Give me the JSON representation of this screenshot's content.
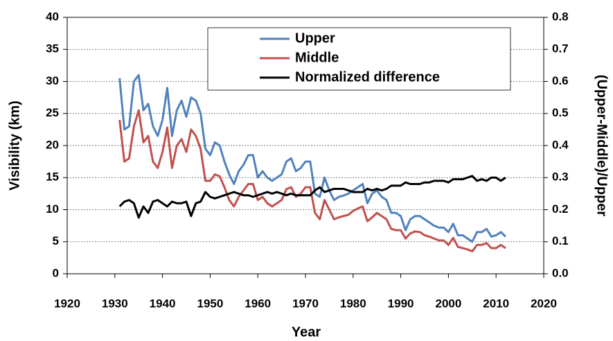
{
  "chart_data": {
    "type": "line",
    "x_label": "Year",
    "y_label": "Visibility (km)",
    "y2_label": "(Upper-Middle)/Upper",
    "x": [
      1931,
      1932,
      1933,
      1934,
      1935,
      1936,
      1937,
      1938,
      1939,
      1940,
      1941,
      1942,
      1943,
      1944,
      1945,
      1946,
      1947,
      1948,
      1949,
      1950,
      1951,
      1952,
      1953,
      1954,
      1955,
      1956,
      1957,
      1958,
      1959,
      1960,
      1961,
      1962,
      1963,
      1964,
      1965,
      1966,
      1967,
      1968,
      1969,
      1970,
      1971,
      1972,
      1973,
      1974,
      1975,
      1976,
      1977,
      1978,
      1979,
      1980,
      1981,
      1982,
      1983,
      1984,
      1985,
      1986,
      1987,
      1988,
      1989,
      1990,
      1991,
      1992,
      1993,
      1994,
      1995,
      1996,
      1997,
      1998,
      1999,
      2000,
      2001,
      2002,
      2003,
      2004,
      2005,
      2006,
      2007,
      2008,
      2009,
      2010,
      2011,
      2012
    ],
    "series": [
      {
        "name": "Upper",
        "color": "#4f81bd",
        "values": [
          30.5,
          22.5,
          23,
          30,
          31,
          25.5,
          26.5,
          23,
          21.5,
          24,
          29,
          21.5,
          25.5,
          27,
          24.5,
          27.5,
          27,
          25,
          19.5,
          18.5,
          20.5,
          20,
          17.5,
          15.5,
          14,
          16,
          17,
          18.5,
          18.5,
          15,
          16,
          15,
          14.5,
          15,
          15.5,
          17.5,
          18,
          16,
          16.5,
          17.5,
          17.5,
          12.5,
          12,
          15,
          13,
          11.5,
          12,
          12.2,
          12.5,
          13,
          13.5,
          14,
          11,
          12.5,
          13,
          12,
          11.5,
          9.5,
          9.5,
          9,
          6.8,
          8.5,
          9,
          9,
          8.5,
          8,
          7.5,
          7.2,
          7.2,
          6.5,
          7.8,
          6,
          6,
          5.5,
          5,
          6.5,
          6.5,
          7,
          5.8,
          6,
          6.5,
          5.8
        ]
      },
      {
        "name": "Middle",
        "color": "#c0504d",
        "values": [
          24,
          17.5,
          18,
          23,
          25.5,
          20.5,
          21.5,
          17.5,
          16.5,
          19,
          22.8,
          16.5,
          20,
          21,
          19,
          22.5,
          21.5,
          19.5,
          14.5,
          14.5,
          15.5,
          15.2,
          13.5,
          11.5,
          10.5,
          12,
          13,
          14,
          14,
          11.5,
          12,
          11,
          10.5,
          11,
          11.5,
          13.2,
          13.5,
          12,
          12.5,
          13.5,
          13.5,
          9.5,
          8.5,
          11.5,
          10,
          8.5,
          8.8,
          9,
          9.2,
          9.8,
          10.2,
          10.5,
          8.2,
          8.8,
          9.5,
          9,
          8.5,
          7,
          6.8,
          6.8,
          5.5,
          6.3,
          6.6,
          6.5,
          6,
          5.8,
          5.5,
          5.2,
          5.2,
          4.5,
          5.6,
          4.2,
          4,
          3.8,
          3.5,
          4.5,
          4.5,
          4.8,
          4,
          4,
          4.5,
          4
        ]
      },
      {
        "name": "Normalized difference",
        "color": "#000000",
        "axis": "y2",
        "values": [
          0.21,
          0.225,
          0.23,
          0.22,
          0.175,
          0.21,
          0.19,
          0.225,
          0.23,
          0.22,
          0.21,
          0.225,
          0.22,
          0.22,
          0.225,
          0.18,
          0.22,
          0.225,
          0.255,
          0.24,
          0.235,
          0.24,
          0.245,
          0.25,
          0.255,
          0.25,
          0.245,
          0.245,
          0.24,
          0.245,
          0.25,
          0.255,
          0.25,
          0.255,
          0.25,
          0.245,
          0.25,
          0.245,
          0.245,
          0.245,
          0.245,
          0.26,
          0.27,
          0.255,
          0.26,
          0.265,
          0.265,
          0.265,
          0.26,
          0.255,
          0.255,
          0.255,
          0.265,
          0.26,
          0.265,
          0.26,
          0.265,
          0.275,
          0.275,
          0.275,
          0.285,
          0.28,
          0.28,
          0.28,
          0.285,
          0.285,
          0.29,
          0.29,
          0.29,
          0.285,
          0.295,
          0.295,
          0.295,
          0.3,
          0.305,
          0.29,
          0.295,
          0.29,
          0.3,
          0.3,
          0.29,
          0.3
        ]
      }
    ],
    "xlim": [
      1920,
      2020
    ],
    "xticks": [
      1920,
      1930,
      1940,
      1950,
      1960,
      1970,
      1980,
      1990,
      2000,
      2010,
      2020
    ],
    "ylim": [
      0,
      40
    ],
    "yticks": [
      0,
      5,
      10,
      15,
      20,
      25,
      30,
      35,
      40
    ],
    "y2lim": [
      0,
      0.8
    ],
    "y2ticks": [
      {
        "value": 0,
        "label": "0.0"
      },
      0.1,
      0.2,
      0.3,
      0.4,
      0.5,
      0.6,
      0.7,
      0.8
    ],
    "grid": true,
    "legend": "top-center"
  }
}
